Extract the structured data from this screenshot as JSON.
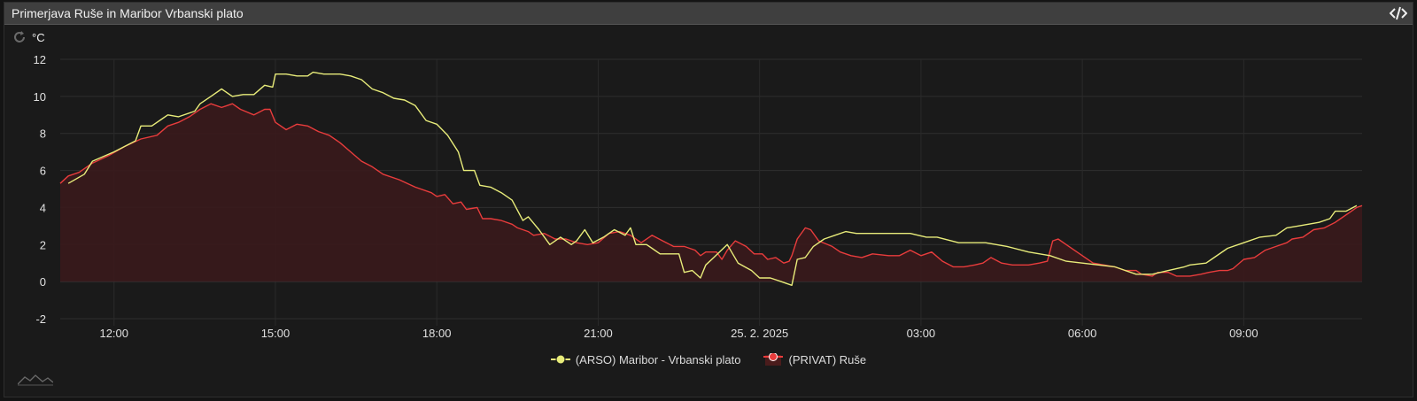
{
  "panel": {
    "title": "Primerjava Ruše in Maribor Vrbanski plato",
    "code_icon": "code-icon",
    "refresh_icon": "refresh-icon",
    "mini_icon": "sparkline-icon"
  },
  "chart_data": {
    "type": "line",
    "ylabel": "°C",
    "ylim": [
      -2,
      12
    ],
    "yticks": [
      -2,
      0,
      2,
      4,
      6,
      8,
      10,
      12
    ],
    "xlim": [
      11.0,
      35.2
    ],
    "xticks": [
      {
        "x": 12,
        "label": "12:00"
      },
      {
        "x": 15,
        "label": "15:00"
      },
      {
        "x": 18,
        "label": "18:00"
      },
      {
        "x": 21,
        "label": "21:00"
      },
      {
        "x": 24,
        "label": "25. 2. 2025"
      },
      {
        "x": 27,
        "label": "03:00"
      },
      {
        "x": 30,
        "label": "06:00"
      },
      {
        "x": 33,
        "label": "09:00"
      }
    ],
    "series": [
      {
        "name": "(ARSO) Maribor - Vrbanski plato",
        "color": "#e8ec7a",
        "fill": false,
        "points": [
          [
            11.15,
            5.3
          ],
          [
            11.45,
            5.8
          ],
          [
            11.6,
            6.5
          ],
          [
            12.0,
            7.0
          ],
          [
            12.4,
            7.6
          ],
          [
            12.5,
            8.4
          ],
          [
            12.7,
            8.4
          ],
          [
            12.9,
            8.8
          ],
          [
            13.0,
            9.0
          ],
          [
            13.2,
            8.9
          ],
          [
            13.5,
            9.2
          ],
          [
            13.6,
            9.6
          ],
          [
            13.8,
            10.0
          ],
          [
            14.0,
            10.4
          ],
          [
            14.2,
            10.0
          ],
          [
            14.4,
            10.1
          ],
          [
            14.6,
            10.1
          ],
          [
            14.8,
            10.6
          ],
          [
            14.95,
            10.5
          ],
          [
            15.0,
            11.2
          ],
          [
            15.2,
            11.2
          ],
          [
            15.4,
            11.1
          ],
          [
            15.6,
            11.1
          ],
          [
            15.7,
            11.3
          ],
          [
            15.9,
            11.2
          ],
          [
            16.2,
            11.2
          ],
          [
            16.4,
            11.1
          ],
          [
            16.6,
            10.9
          ],
          [
            16.8,
            10.4
          ],
          [
            17.0,
            10.2
          ],
          [
            17.2,
            9.9
          ],
          [
            17.4,
            9.8
          ],
          [
            17.6,
            9.5
          ],
          [
            17.8,
            8.7
          ],
          [
            18.0,
            8.5
          ],
          [
            18.2,
            7.9
          ],
          [
            18.4,
            7.0
          ],
          [
            18.5,
            6.0
          ],
          [
            18.7,
            6.0
          ],
          [
            18.8,
            5.2
          ],
          [
            19.0,
            5.1
          ],
          [
            19.2,
            4.8
          ],
          [
            19.4,
            4.4
          ],
          [
            19.6,
            3.3
          ],
          [
            19.7,
            3.5
          ],
          [
            19.9,
            2.8
          ],
          [
            20.1,
            2.0
          ],
          [
            20.3,
            2.4
          ],
          [
            20.5,
            2.0
          ],
          [
            20.6,
            2.2
          ],
          [
            20.75,
            2.8
          ],
          [
            20.9,
            2.1
          ],
          [
            21.1,
            2.4
          ],
          [
            21.3,
            2.8
          ],
          [
            21.5,
            2.5
          ],
          [
            21.6,
            2.9
          ],
          [
            21.7,
            2.0
          ],
          [
            21.9,
            2.0
          ],
          [
            22.0,
            1.8
          ],
          [
            22.15,
            1.5
          ],
          [
            22.5,
            1.5
          ],
          [
            22.6,
            0.5
          ],
          [
            22.75,
            0.6
          ],
          [
            22.9,
            0.2
          ],
          [
            23.0,
            0.9
          ],
          [
            23.15,
            1.3
          ],
          [
            23.4,
            2.0
          ],
          [
            23.6,
            1.0
          ],
          [
            23.85,
            0.6
          ],
          [
            24.0,
            0.2
          ],
          [
            24.2,
            0.2
          ],
          [
            24.4,
            0.0
          ],
          [
            24.5,
            -0.1
          ],
          [
            24.6,
            -0.2
          ],
          [
            24.7,
            1.2
          ],
          [
            24.85,
            1.3
          ],
          [
            25.0,
            1.9
          ],
          [
            25.2,
            2.3
          ],
          [
            25.4,
            2.5
          ],
          [
            25.6,
            2.7
          ],
          [
            25.8,
            2.6
          ],
          [
            26.2,
            2.6
          ],
          [
            26.8,
            2.6
          ],
          [
            27.1,
            2.4
          ],
          [
            27.3,
            2.4
          ],
          [
            27.7,
            2.1
          ],
          [
            28.2,
            2.1
          ],
          [
            28.6,
            1.9
          ],
          [
            29.0,
            1.6
          ],
          [
            29.4,
            1.4
          ],
          [
            29.7,
            1.1
          ],
          [
            30.0,
            1.0
          ],
          [
            30.3,
            0.9
          ],
          [
            30.6,
            0.8
          ],
          [
            31.0,
            0.4
          ],
          [
            31.3,
            0.4
          ],
          [
            31.6,
            0.6
          ],
          [
            31.9,
            0.8
          ],
          [
            32.0,
            0.9
          ],
          [
            32.3,
            1.0
          ],
          [
            32.4,
            1.2
          ],
          [
            32.7,
            1.8
          ],
          [
            33.0,
            2.1
          ],
          [
            33.3,
            2.4
          ],
          [
            33.6,
            2.5
          ],
          [
            33.8,
            2.9
          ],
          [
            34.0,
            3.0
          ],
          [
            34.2,
            3.1
          ],
          [
            34.4,
            3.2
          ],
          [
            34.6,
            3.4
          ],
          [
            34.7,
            3.8
          ],
          [
            34.9,
            3.8
          ],
          [
            35.1,
            4.1
          ]
        ]
      },
      {
        "name": "(PRIVAT) Ruše",
        "color": "#e83c3c",
        "fill": true,
        "points": [
          [
            11.0,
            5.3
          ],
          [
            11.15,
            5.7
          ],
          [
            11.35,
            5.9
          ],
          [
            11.6,
            6.4
          ],
          [
            11.9,
            6.8
          ],
          [
            12.2,
            7.3
          ],
          [
            12.5,
            7.7
          ],
          [
            12.8,
            7.9
          ],
          [
            13.0,
            8.4
          ],
          [
            13.2,
            8.6
          ],
          [
            13.4,
            8.9
          ],
          [
            13.5,
            9.1
          ],
          [
            13.6,
            9.3
          ],
          [
            13.8,
            9.6
          ],
          [
            14.0,
            9.4
          ],
          [
            14.2,
            9.6
          ],
          [
            14.35,
            9.3
          ],
          [
            14.6,
            9.0
          ],
          [
            14.8,
            9.3
          ],
          [
            14.9,
            9.3
          ],
          [
            15.0,
            8.6
          ],
          [
            15.2,
            8.2
          ],
          [
            15.4,
            8.5
          ],
          [
            15.6,
            8.4
          ],
          [
            15.8,
            8.1
          ],
          [
            16.0,
            7.9
          ],
          [
            16.2,
            7.5
          ],
          [
            16.4,
            7.0
          ],
          [
            16.6,
            6.5
          ],
          [
            16.8,
            6.2
          ],
          [
            17.0,
            5.8
          ],
          [
            17.3,
            5.5
          ],
          [
            17.6,
            5.1
          ],
          [
            17.9,
            4.8
          ],
          [
            18.0,
            4.6
          ],
          [
            18.15,
            4.7
          ],
          [
            18.3,
            4.2
          ],
          [
            18.45,
            4.3
          ],
          [
            18.55,
            3.9
          ],
          [
            18.75,
            4.0
          ],
          [
            18.85,
            3.4
          ],
          [
            19.0,
            3.4
          ],
          [
            19.2,
            3.3
          ],
          [
            19.4,
            3.1
          ],
          [
            19.5,
            2.9
          ],
          [
            19.7,
            2.7
          ],
          [
            19.8,
            2.5
          ],
          [
            20.0,
            2.6
          ],
          [
            20.2,
            2.3
          ],
          [
            20.4,
            2.3
          ],
          [
            20.6,
            2.1
          ],
          [
            20.8,
            2.0
          ],
          [
            21.0,
            2.1
          ],
          [
            21.2,
            2.6
          ],
          [
            21.4,
            2.7
          ],
          [
            21.6,
            2.5
          ],
          [
            21.8,
            2.1
          ],
          [
            22.0,
            2.5
          ],
          [
            22.2,
            2.2
          ],
          [
            22.4,
            1.9
          ],
          [
            22.6,
            1.9
          ],
          [
            22.8,
            1.7
          ],
          [
            22.9,
            1.4
          ],
          [
            23.0,
            1.6
          ],
          [
            23.2,
            1.6
          ],
          [
            23.3,
            1.2
          ],
          [
            23.4,
            1.7
          ],
          [
            23.55,
            2.2
          ],
          [
            23.75,
            1.9
          ],
          [
            23.9,
            1.5
          ],
          [
            24.05,
            1.5
          ],
          [
            24.15,
            1.2
          ],
          [
            24.3,
            1.3
          ],
          [
            24.45,
            1.0
          ],
          [
            24.55,
            1.1
          ],
          [
            24.6,
            1.4
          ],
          [
            24.7,
            2.3
          ],
          [
            24.85,
            2.9
          ],
          [
            24.95,
            2.8
          ],
          [
            25.1,
            2.2
          ],
          [
            25.35,
            1.9
          ],
          [
            25.5,
            1.6
          ],
          [
            25.7,
            1.4
          ],
          [
            25.9,
            1.3
          ],
          [
            26.1,
            1.5
          ],
          [
            26.4,
            1.4
          ],
          [
            26.6,
            1.4
          ],
          [
            26.8,
            1.7
          ],
          [
            27.0,
            1.4
          ],
          [
            27.2,
            1.6
          ],
          [
            27.4,
            1.1
          ],
          [
            27.6,
            0.8
          ],
          [
            27.8,
            0.8
          ],
          [
            28.0,
            0.9
          ],
          [
            28.15,
            1.0
          ],
          [
            28.3,
            1.3
          ],
          [
            28.5,
            1.0
          ],
          [
            28.7,
            0.9
          ],
          [
            28.9,
            0.9
          ],
          [
            29.0,
            0.9
          ],
          [
            29.2,
            1.0
          ],
          [
            29.35,
            1.1
          ],
          [
            29.45,
            2.2
          ],
          [
            29.55,
            2.3
          ],
          [
            29.7,
            2.0
          ],
          [
            29.9,
            1.6
          ],
          [
            30.0,
            1.4
          ],
          [
            30.2,
            1.0
          ],
          [
            30.4,
            0.9
          ],
          [
            30.6,
            0.8
          ],
          [
            30.8,
            0.6
          ],
          [
            31.0,
            0.6
          ],
          [
            31.1,
            0.4
          ],
          [
            31.3,
            0.3
          ],
          [
            31.4,
            0.5
          ],
          [
            31.6,
            0.5
          ],
          [
            31.75,
            0.3
          ],
          [
            32.0,
            0.3
          ],
          [
            32.2,
            0.4
          ],
          [
            32.35,
            0.5
          ],
          [
            32.55,
            0.6
          ],
          [
            32.7,
            0.6
          ],
          [
            32.8,
            0.7
          ],
          [
            33.0,
            1.2
          ],
          [
            33.2,
            1.3
          ],
          [
            33.4,
            1.7
          ],
          [
            33.6,
            1.9
          ],
          [
            33.8,
            2.1
          ],
          [
            33.9,
            2.3
          ],
          [
            34.1,
            2.4
          ],
          [
            34.3,
            2.8
          ],
          [
            34.5,
            2.9
          ],
          [
            34.7,
            3.2
          ],
          [
            34.8,
            3.4
          ],
          [
            34.9,
            3.6
          ],
          [
            35.0,
            3.8
          ],
          [
            35.1,
            4.0
          ],
          [
            35.2,
            4.1
          ]
        ]
      }
    ],
    "legend": "bottom-center",
    "grid": true
  }
}
